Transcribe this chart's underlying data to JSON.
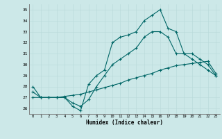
{
  "xlabel": "Humidex (Indice chaleur)",
  "bg_color": "#cce8e8",
  "line_color": "#006666",
  "xlim": [
    -0.5,
    23.5
  ],
  "ylim": [
    25.5,
    35.5
  ],
  "xticks": [
    0,
    1,
    2,
    3,
    4,
    5,
    6,
    7,
    8,
    9,
    10,
    11,
    12,
    13,
    14,
    15,
    16,
    17,
    18,
    19,
    20,
    21,
    22,
    23
  ],
  "yticks": [
    26,
    27,
    28,
    29,
    30,
    31,
    32,
    33,
    34,
    35
  ],
  "curve1_x": [
    0,
    1,
    2,
    3,
    4,
    5,
    6,
    7,
    8,
    9,
    10,
    11,
    12,
    13,
    14,
    15,
    16,
    17,
    18,
    19,
    20,
    21,
    22,
    23
  ],
  "curve1_y": [
    28,
    27,
    27,
    27,
    27,
    26.2,
    25.8,
    28.2,
    29,
    29.5,
    32,
    32.5,
    32.7,
    33,
    34,
    34.5,
    35,
    33.3,
    33,
    31,
    31,
    30.5,
    30,
    29
  ],
  "curve2_x": [
    0,
    1,
    2,
    3,
    4,
    5,
    6,
    7,
    8,
    9,
    10,
    11,
    12,
    13,
    14,
    15,
    16,
    17,
    18,
    19,
    20,
    21,
    22,
    23
  ],
  "curve2_y": [
    27.5,
    27,
    27,
    27,
    27,
    26.5,
    26.2,
    26.8,
    28,
    29,
    30,
    30.5,
    31,
    31.5,
    32.5,
    33,
    33,
    32.5,
    31,
    31,
    30.5,
    30,
    29.5,
    29
  ],
  "curve3_x": [
    0,
    1,
    2,
    3,
    4,
    5,
    6,
    7,
    8,
    9,
    10,
    11,
    12,
    13,
    14,
    15,
    16,
    17,
    18,
    19,
    20,
    21,
    22,
    23
  ],
  "curve3_y": [
    27,
    27,
    27,
    27,
    27.1,
    27.2,
    27.3,
    27.5,
    27.7,
    27.9,
    28.1,
    28.3,
    28.6,
    28.8,
    29.0,
    29.2,
    29.5,
    29.7,
    29.9,
    30.0,
    30.1,
    30.2,
    30.3,
    29.2
  ]
}
